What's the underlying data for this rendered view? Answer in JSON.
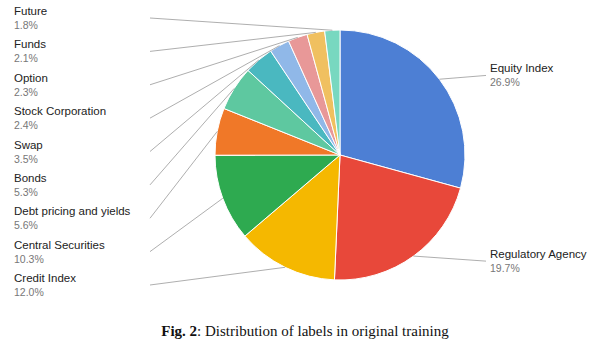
{
  "chart_data": {
    "type": "pie",
    "title": "Fig. 2: Distribution of labels in original training",
    "categories": [
      "Equity Index",
      "Regulatory Agency",
      "Credit Index",
      "Central Securities",
      "Debt pricing and yields",
      "Bonds",
      "Swap",
      "Stock Corporation",
      "Option",
      "Funds",
      "Future"
    ],
    "values": [
      26.9,
      19.7,
      12.0,
      10.3,
      5.6,
      5.3,
      3.5,
      2.4,
      2.3,
      2.1,
      1.8
    ],
    "value_labels": [
      "26.9%",
      "19.7%",
      "12.0%",
      "10.3%",
      "5.6%",
      "5.3%",
      "3.5%",
      "2.4%",
      "2.3%",
      "2.1%",
      "1.8%"
    ],
    "colors": [
      "#4d7fd4",
      "#e8483a",
      "#f5b800",
      "#2eaa50",
      "#f07828",
      "#5ec8a0",
      "#4ab8c0",
      "#90b8e8",
      "#e89898",
      "#f0c060",
      "#78d8c0"
    ],
    "data_labels": true
  }
}
